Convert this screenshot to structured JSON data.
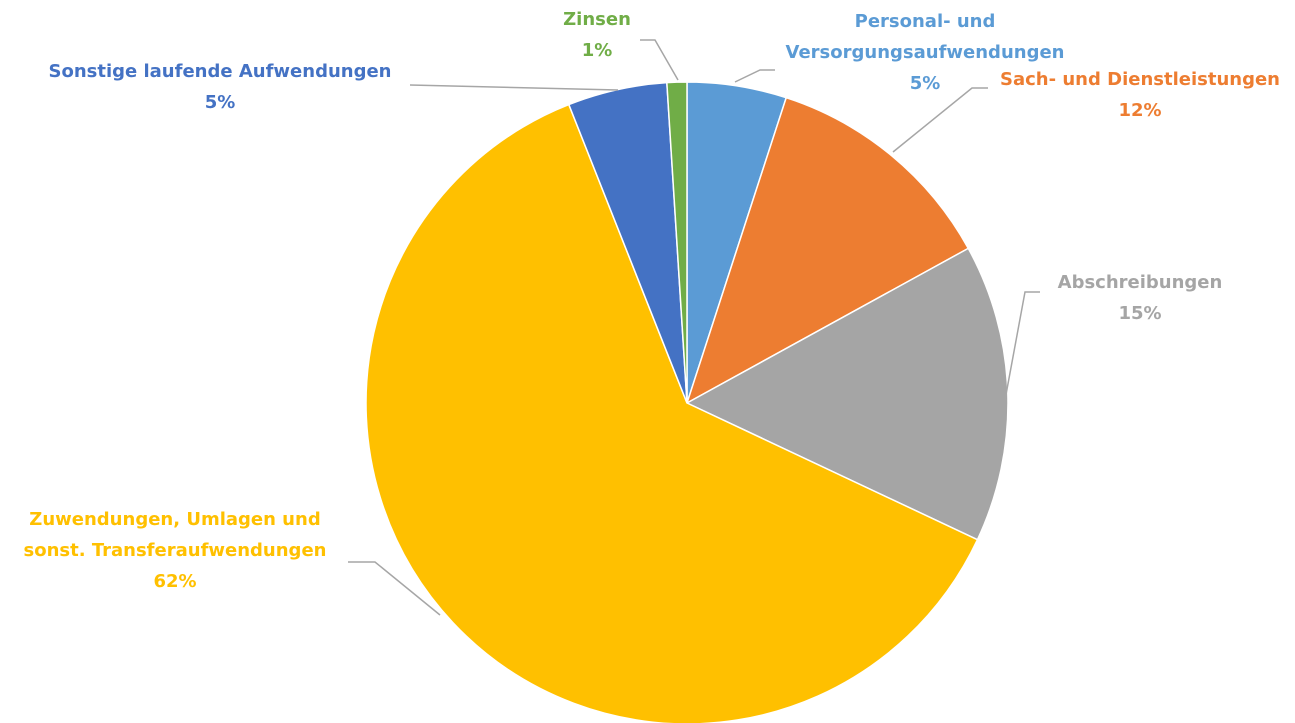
{
  "chart_data": {
    "type": "pie",
    "categories": [
      "Personal- und Versorgungsaufwendungen",
      "Sach- und Dienstleistungen",
      "Abschreibungen",
      "Zuwendungen, Umlagen und sonst. Transferaufwendungen",
      "Sonstige laufende Aufwendungen",
      "Zinsen"
    ],
    "values": [
      5,
      12,
      15,
      62,
      5,
      1
    ],
    "value_labels": [
      "5%",
      "12%",
      "15%",
      "62%",
      "5%",
      "1%"
    ],
    "colors": [
      "#5b9bd5",
      "#ed7d31",
      "#a5a5a5",
      "#ffc000",
      "#4472c4",
      "#70ad47"
    ]
  }
}
